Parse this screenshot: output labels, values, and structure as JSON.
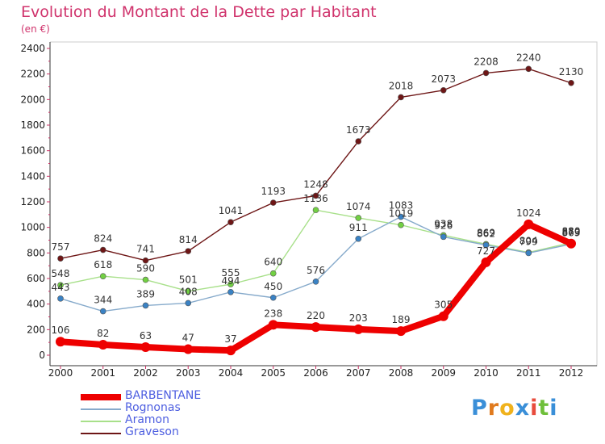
{
  "header": {
    "title": "Evolution du Montant de la Dette par Habitant",
    "unit": "(en €)"
  },
  "logo": {
    "letters": [
      "P",
      "r",
      "o",
      "x",
      "i",
      "t",
      "i"
    ],
    "colors": [
      "#3a8fd8",
      "#e07a1e",
      "#f0b21c",
      "#3a8fd8",
      "#e84c3d",
      "#6fbf3a",
      "#3a8fd8"
    ]
  },
  "chart_data": {
    "type": "line",
    "title": "Evolution du Montant de la Dette par Habitant",
    "ylabel": "(en €)",
    "xlabel": "",
    "ylim": [
      0,
      2400
    ],
    "yticks": [
      0,
      200,
      400,
      600,
      800,
      1000,
      1200,
      1400,
      1600,
      1800,
      2000,
      2200,
      2400
    ],
    "x": [
      "2000",
      "2001",
      "2002",
      "2003",
      "2004",
      "2005",
      "2006",
      "2007",
      "2008",
      "2009",
      "2010",
      "2011",
      "2012"
    ],
    "grid": false,
    "legend_position": "bottom-left",
    "series": [
      {
        "name": "Graveson",
        "color": "#6e1616",
        "marker_color": "#6e1616",
        "values": [
          757,
          824,
          741,
          814,
          1041,
          1193,
          1248,
          1673,
          2018,
          2073,
          2208,
          2240,
          2130
        ],
        "labels": [
          "757",
          "824",
          "741",
          "814",
          "1041",
          "1193",
          "1248",
          "1673",
          "2018",
          "2073",
          "2208",
          "2240",
          "2130"
        ]
      },
      {
        "name": "Aramon",
        "color": "#a8e08a",
        "marker_color": "#72d043",
        "values": [
          548,
          618,
          590,
          501,
          555,
          640,
          1136,
          1074,
          1019,
          938,
          869,
          804,
          880
        ],
        "labels": [
          "548",
          "618",
          "590",
          "501",
          "555",
          "640",
          "1136",
          "1074",
          "1019",
          "938",
          "869",
          "804",
          "880"
        ]
      },
      {
        "name": "Rognonas",
        "color": "#86aacb",
        "marker_color": "#3a82c4",
        "values": [
          443,
          344,
          389,
          408,
          494,
          450,
          576,
          911,
          1083,
          926,
          862,
          799,
          869
        ],
        "labels": [
          "443",
          "344",
          "389",
          "408",
          "494",
          "450",
          "576",
          "911",
          "1083",
          "926",
          "862",
          "799",
          "869"
        ]
      },
      {
        "name": "BARBENTANE",
        "color": "#ee0000",
        "marker_color": "#ee0000",
        "values": [
          106,
          82,
          63,
          47,
          37,
          238,
          220,
          203,
          189,
          305,
          727,
          1024,
          873
        ],
        "labels": [
          "106",
          "82",
          "63",
          "47",
          "37",
          "238",
          "220",
          "203",
          "189",
          "305",
          "727",
          "1024",
          "873"
        ]
      }
    ],
    "legend": [
      "BARBENTANE",
      "Rognonas",
      "Aramon",
      "Graveson"
    ]
  }
}
